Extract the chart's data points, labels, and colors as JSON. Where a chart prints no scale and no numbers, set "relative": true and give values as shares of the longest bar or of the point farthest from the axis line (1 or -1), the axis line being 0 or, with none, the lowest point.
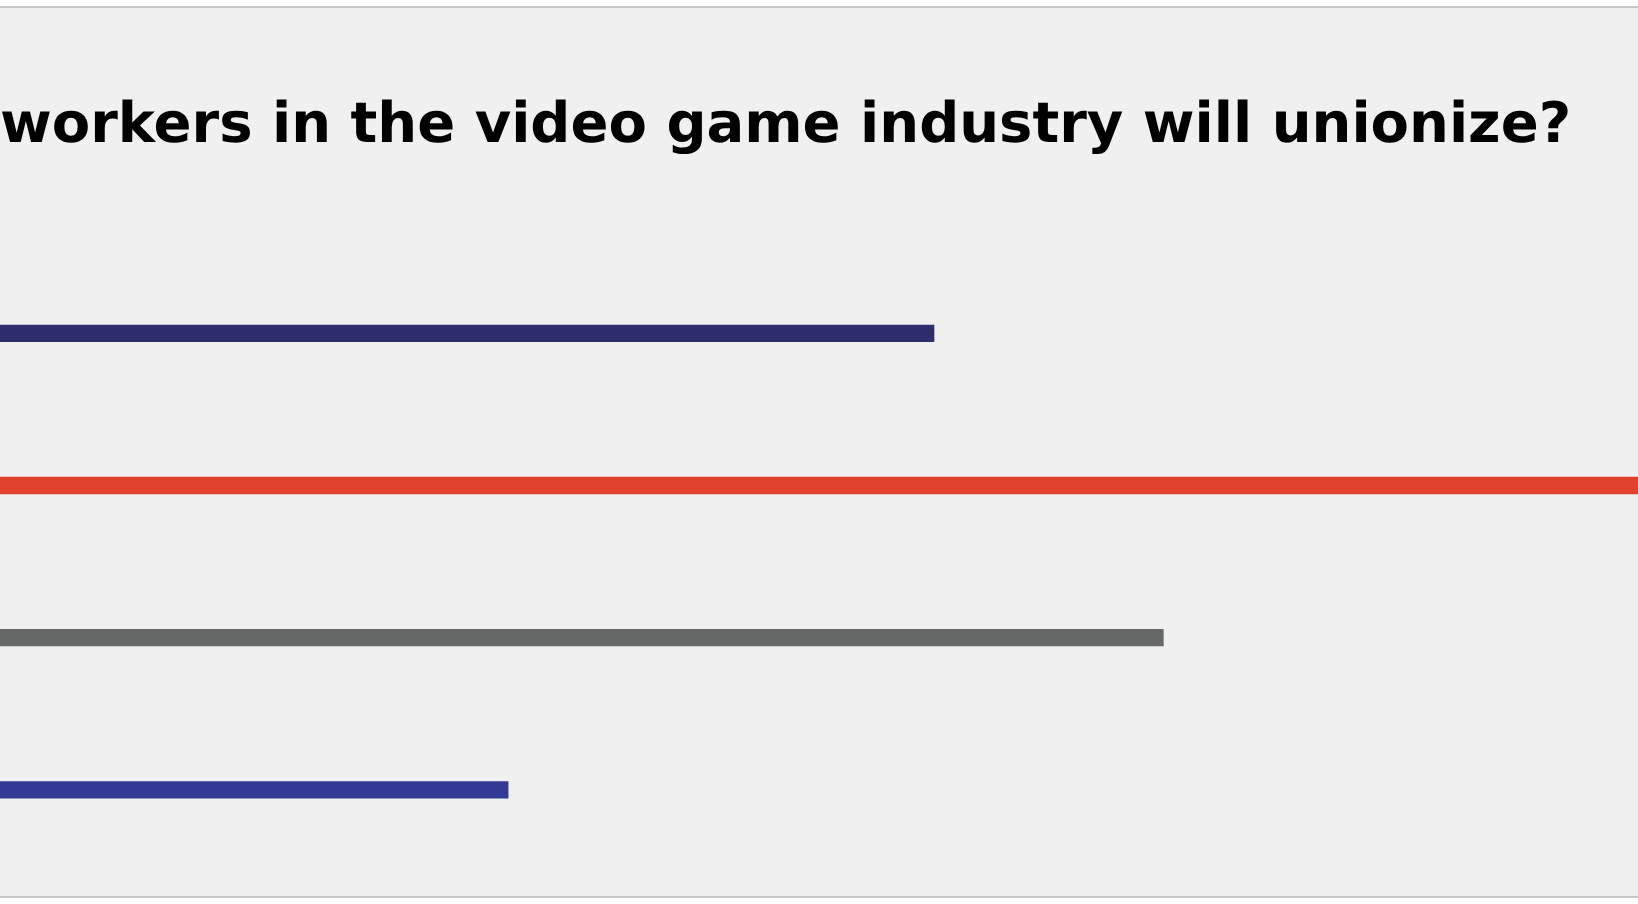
{
  "chart_data": {
    "type": "bar",
    "orientation": "horizontal",
    "relative": true,
    "title": "workers in the video game industry will unionize?",
    "categories": [
      null,
      null,
      null,
      null
    ],
    "values": [
      0.57,
      1,
      0.71,
      0.31
    ],
    "colors": [
      "#2e2d6e",
      "#e0412e",
      "#666868",
      "#333a96"
    ],
    "legend": false
  }
}
